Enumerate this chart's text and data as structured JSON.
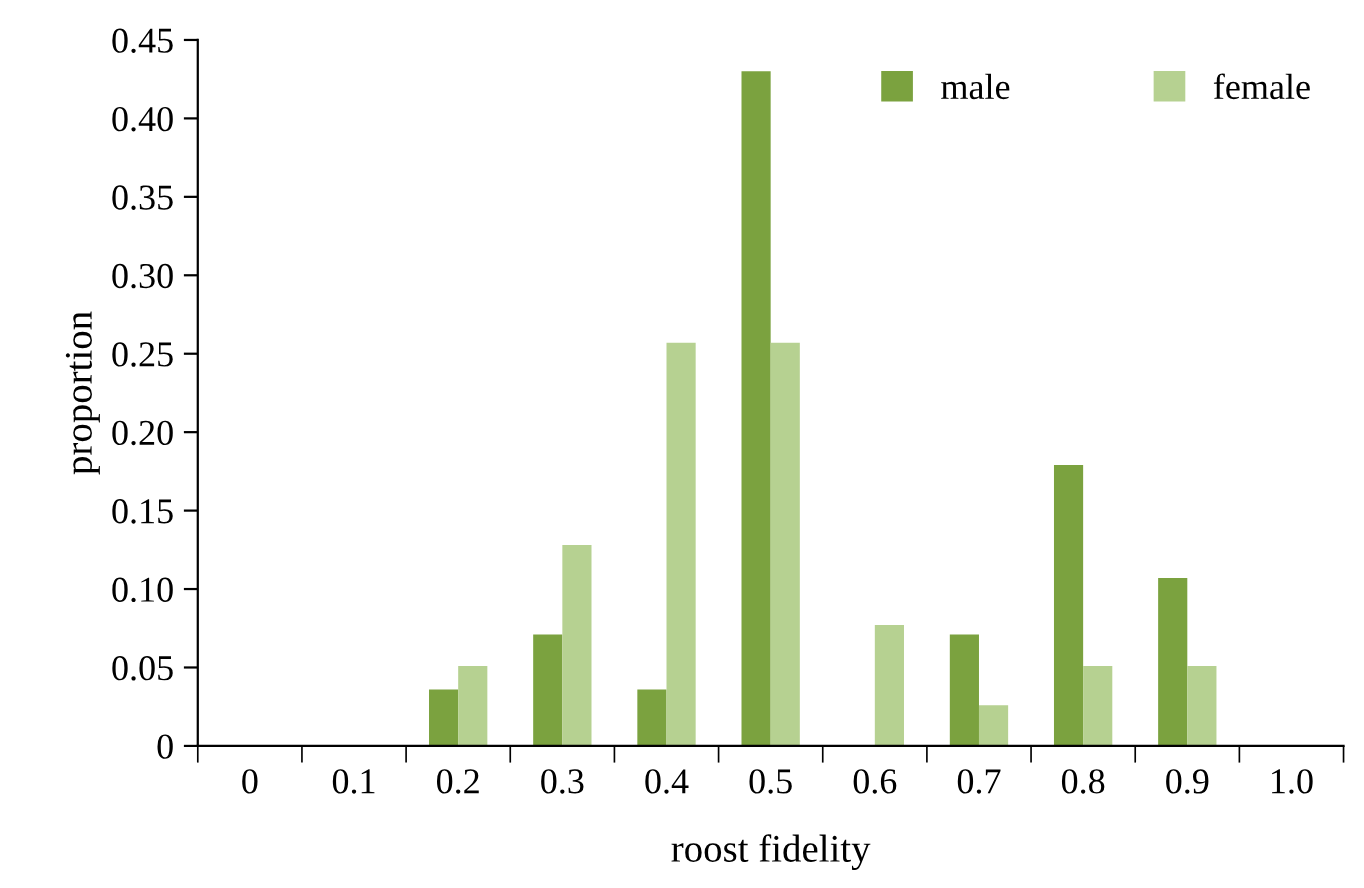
{
  "chart_data": {
    "type": "bar",
    "xlabel": "roost fidelity",
    "ylabel": "proportion",
    "categories": [
      "0",
      "0.1",
      "0.2",
      "0.3",
      "0.4",
      "0.5",
      "0.6",
      "0.7",
      "0.8",
      "0.9",
      "1.0"
    ],
    "series": [
      {
        "name": "male",
        "color": "#7ba23f",
        "values": [
          0,
          0,
          0.036,
          0.071,
          0.036,
          0.43,
          0,
          0.071,
          0.179,
          0.107,
          0
        ]
      },
      {
        "name": "female",
        "color": "#b6d191",
        "values": [
          0,
          0,
          0.051,
          0.128,
          0.257,
          0.257,
          0.077,
          0.026,
          0.051,
          0.051,
          0
        ]
      }
    ],
    "ylim": [
      0,
      0.45
    ],
    "yticks": [
      {
        "value": 0,
        "label": "0"
      },
      {
        "value": 0.05,
        "label": "0.05"
      },
      {
        "value": 0.1,
        "label": "0.10"
      },
      {
        "value": 0.15,
        "label": "0.15"
      },
      {
        "value": 0.2,
        "label": "0.20"
      },
      {
        "value": 0.25,
        "label": "0.25"
      },
      {
        "value": 0.3,
        "label": "0.30"
      },
      {
        "value": 0.35,
        "label": "0.35"
      },
      {
        "value": 0.4,
        "label": "0.40"
      },
      {
        "value": 0.45,
        "label": "0.45"
      }
    ],
    "grid": false,
    "legend": "top right"
  }
}
